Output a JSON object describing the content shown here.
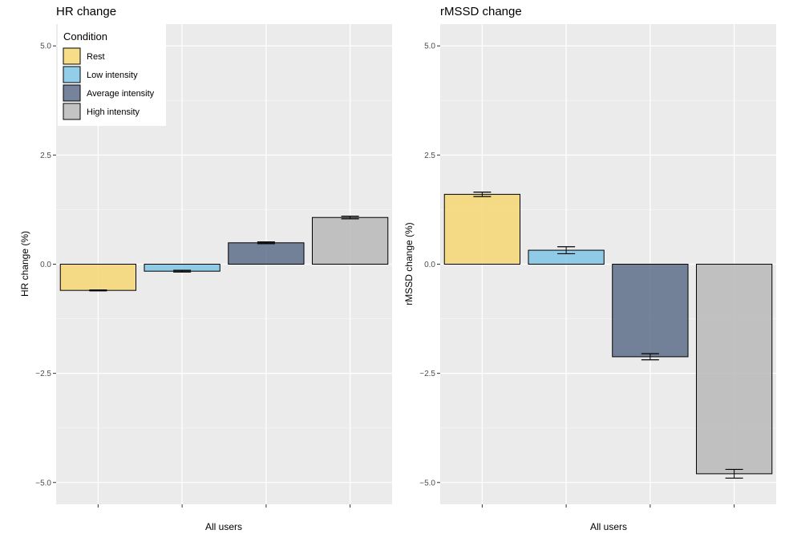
{
  "legend": {
    "title": "Condition",
    "entries": [
      {
        "label": "Rest",
        "color": "#F7D774"
      },
      {
        "label": "Low intensity",
        "color": "#7FC6E6"
      },
      {
        "label": "Average intensity",
        "color": "#5E6F89"
      },
      {
        "label": "High intensity",
        "color": "#B8B8B8"
      }
    ]
  },
  "chart_data": [
    {
      "type": "bar",
      "title": "HR change",
      "xlabel": "All users",
      "ylabel": "HR change (%)",
      "ylim": [
        -5.5,
        5.5
      ],
      "yticks": [
        5.0,
        2.5,
        0.0,
        -2.5,
        -5.0
      ],
      "ytick_labels": [
        "5.0",
        "2.5",
        "0.0",
        "−2.5",
        "−5.0"
      ],
      "categories": [
        "Rest",
        "Low intensity",
        "Average intensity",
        "High intensity"
      ],
      "values": [
        -0.6,
        -0.16,
        0.49,
        1.07
      ],
      "errors": [
        0.01,
        0.02,
        0.02,
        0.03
      ],
      "grid": true,
      "legend": "top-left"
    },
    {
      "type": "bar",
      "title": "rMSSD change",
      "xlabel": "All users",
      "ylabel": "rMSSD change (%)",
      "ylim": [
        -5.5,
        5.5
      ],
      "yticks": [
        5.0,
        2.5,
        0.0,
        -2.5,
        -5.0
      ],
      "ytick_labels": [
        "5.0",
        "2.5",
        "0.0",
        "−2.5",
        "−5.0"
      ],
      "categories": [
        "Rest",
        "Low intensity",
        "Average intensity",
        "High intensity"
      ],
      "values": [
        1.6,
        0.32,
        -2.12,
        -4.8
      ],
      "errors": [
        0.05,
        0.08,
        0.07,
        0.1
      ],
      "grid": true,
      "legend": "none"
    }
  ]
}
